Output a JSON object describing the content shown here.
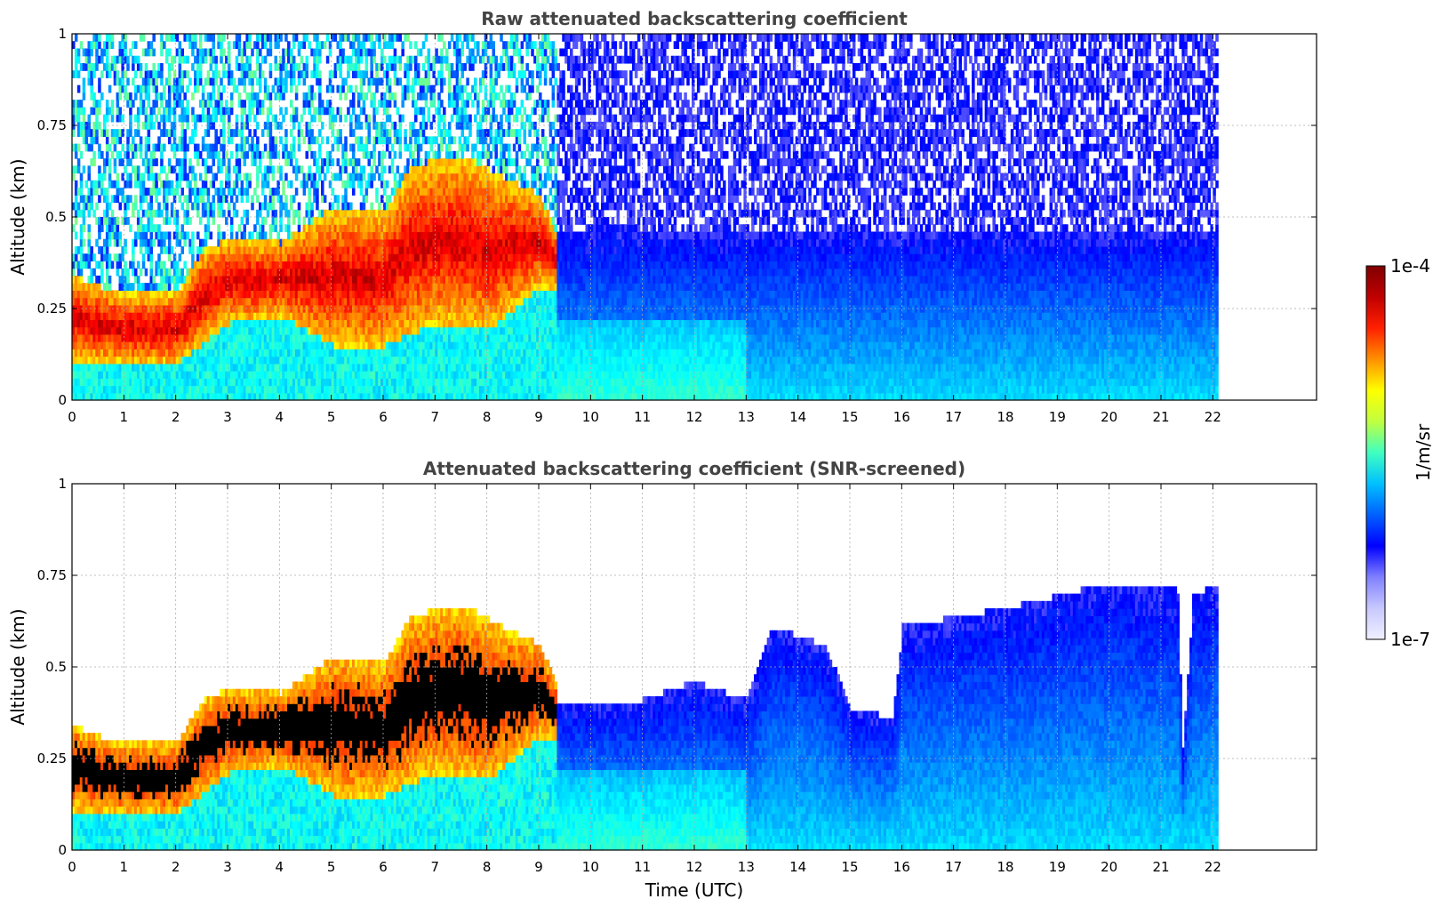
{
  "chart_data": [
    {
      "type": "heatmap",
      "title": "Raw attenuated backscattering coefficient",
      "xlabel": "",
      "ylabel": "Altitude (km)",
      "xlim": [
        0,
        24
      ],
      "ylim": [
        0,
        1
      ],
      "x_ticks": [
        0,
        1,
        2,
        3,
        4,
        5,
        6,
        7,
        8,
        9,
        10,
        11,
        12,
        13,
        14,
        15,
        16,
        17,
        18,
        19,
        20,
        21,
        22
      ],
      "y_ticks": [
        0,
        0.25,
        0.5,
        0.75,
        1
      ],
      "y_tick_labels": [
        "0",
        "0.25",
        "0.5",
        "0.75",
        "1"
      ],
      "grid": true,
      "data_end_time": 22.1,
      "colorscale": "jet",
      "layer_top_km": [
        {
          "t": 0.0,
          "top": 0.33
        },
        {
          "t": 0.5,
          "top": 0.3
        },
        {
          "t": 1.0,
          "top": 0.28
        },
        {
          "t": 2.0,
          "top": 0.28
        },
        {
          "t": 2.5,
          "top": 0.4
        },
        {
          "t": 3.0,
          "top": 0.43
        },
        {
          "t": 4.0,
          "top": 0.42
        },
        {
          "t": 5.0,
          "top": 0.52
        },
        {
          "t": 6.0,
          "top": 0.5
        },
        {
          "t": 6.5,
          "top": 0.63
        },
        {
          "t": 7.5,
          "top": 0.66
        },
        {
          "t": 8.0,
          "top": 0.62
        },
        {
          "t": 9.0,
          "top": 0.55
        },
        {
          "t": 9.3,
          "top": 0.45
        }
      ],
      "layer_base_km": [
        {
          "t": 0.0,
          "base": 0.1
        },
        {
          "t": 1.0,
          "base": 0.09
        },
        {
          "t": 2.0,
          "base": 0.09
        },
        {
          "t": 3.0,
          "base": 0.2
        },
        {
          "t": 4.0,
          "base": 0.22
        },
        {
          "t": 5.0,
          "base": 0.14
        },
        {
          "t": 6.0,
          "base": 0.14
        },
        {
          "t": 7.0,
          "base": 0.2
        },
        {
          "t": 8.0,
          "base": 0.18
        },
        {
          "t": 9.0,
          "base": 0.3
        }
      ]
    },
    {
      "type": "heatmap",
      "title": "Attenuated backscattering coefficient (SNR-screened)",
      "xlabel": "Time (UTC)",
      "ylabel": "Altitude (km)",
      "xlim": [
        0,
        24
      ],
      "ylim": [
        0,
        1
      ],
      "x_ticks": [
        0,
        1,
        2,
        3,
        4,
        5,
        6,
        7,
        8,
        9,
        10,
        11,
        12,
        13,
        14,
        15,
        16,
        17,
        18,
        19,
        20,
        21,
        22
      ],
      "y_ticks": [
        0,
        0.25,
        0.5,
        0.75,
        1
      ],
      "y_tick_labels": [
        "0",
        "0.25",
        "0.5",
        "0.75",
        "1"
      ],
      "grid": true,
      "data_end_time": 22.1,
      "colorscale": "jet",
      "saturated_color": "#000000",
      "screened_signal_top_km": [
        {
          "t": 9.5,
          "top": 0.4
        },
        {
          "t": 11.0,
          "top": 0.4
        },
        {
          "t": 12.0,
          "top": 0.45
        },
        {
          "t": 13.0,
          "top": 0.4
        },
        {
          "t": 13.5,
          "top": 0.6
        },
        {
          "t": 14.5,
          "top": 0.55
        },
        {
          "t": 15.0,
          "top": 0.38
        },
        {
          "t": 15.8,
          "top": 0.35
        },
        {
          "t": 16.0,
          "top": 0.6
        },
        {
          "t": 18.0,
          "top": 0.65
        },
        {
          "t": 20.0,
          "top": 0.72
        },
        {
          "t": 21.3,
          "top": 0.7
        },
        {
          "t": 21.4,
          "top": 0.26
        },
        {
          "t": 21.6,
          "top": 0.68
        },
        {
          "t": 22.1,
          "top": 0.72
        }
      ]
    }
  ],
  "colorbar": {
    "label": "1/m/sr",
    "max_label": "1e-4",
    "min_label": "1e-7",
    "scale": "log",
    "range": [
      1e-07,
      0.0001
    ],
    "colors": [
      "#f0f0ff",
      "#c8c8ff",
      "#8080ff",
      "#0000ff",
      "#0060ff",
      "#00c0ff",
      "#40ffc0",
      "#c0ff40",
      "#ffff00",
      "#ff9000",
      "#ff2000",
      "#c00000",
      "#800000"
    ]
  }
}
